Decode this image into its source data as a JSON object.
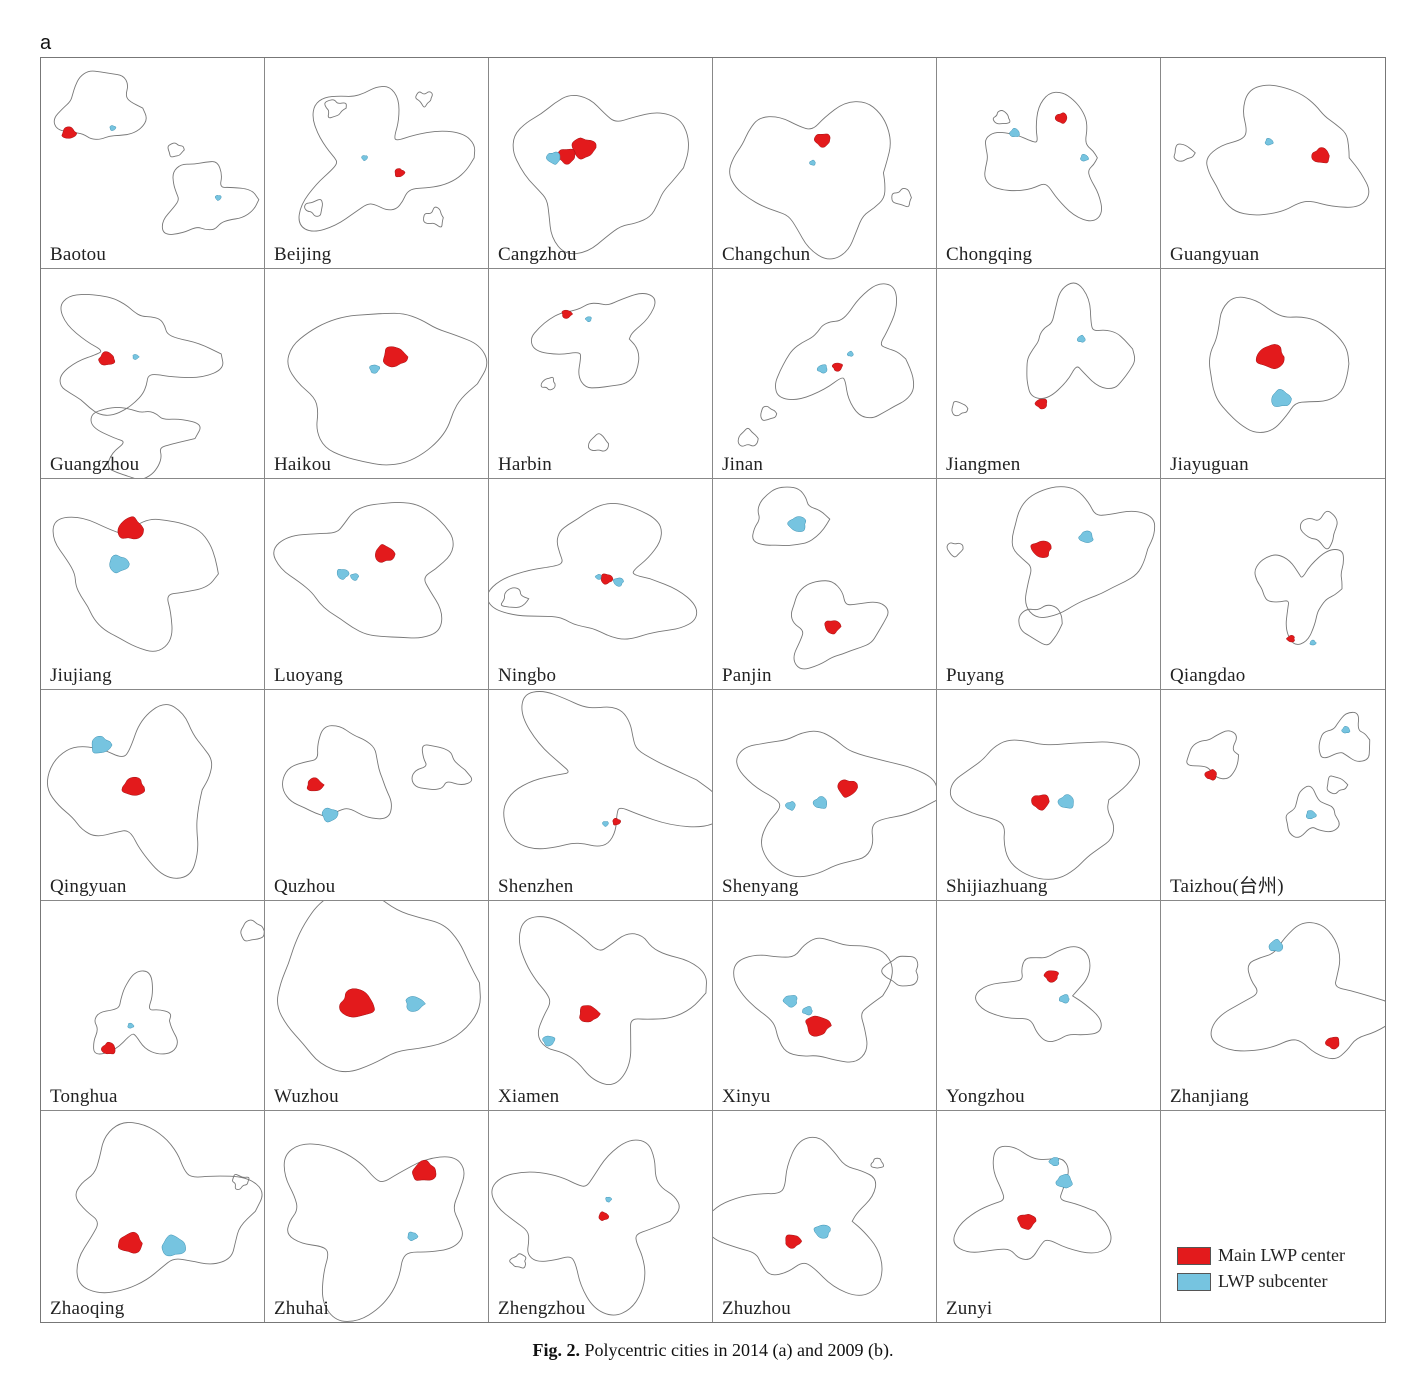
{
  "panel_letter": "a",
  "colors": {
    "main_center": "#e31a1c",
    "subcenter": "#76c4e0",
    "outline": "#777777"
  },
  "cities": [
    "Baotou",
    "Beijing",
    "Cangzhou",
    "Changchun",
    "Chongqing",
    "Guangyuan",
    "Guangzhou",
    "Haikou",
    "Harbin",
    "Jinan",
    "Jiangmen",
    "Jiayuguan",
    "Jiujiang",
    "Luoyang",
    "Ningbo",
    "Panjin",
    "Puyang",
    "Qiangdao",
    "Qingyuan",
    "Quzhou",
    "Shenzhen",
    "Shenyang",
    "Shijiazhuang",
    "Taizhou(台州)",
    "Tonghua",
    "Wuzhou",
    "Xiamen",
    "Xinyu",
    "Yongzhou",
    "Zhanjiang",
    "Zhaoqing",
    "Zhuhai",
    "Zhengzhou",
    "Zhuzhou",
    "Zunyi"
  ],
  "legend": {
    "main_label": "Main LWP center",
    "sub_label": "LWP subcenter"
  },
  "caption": {
    "label": "Fig. 2.",
    "text": " Polycentric cities in 2014 (a) and 2009 (b)."
  }
}
